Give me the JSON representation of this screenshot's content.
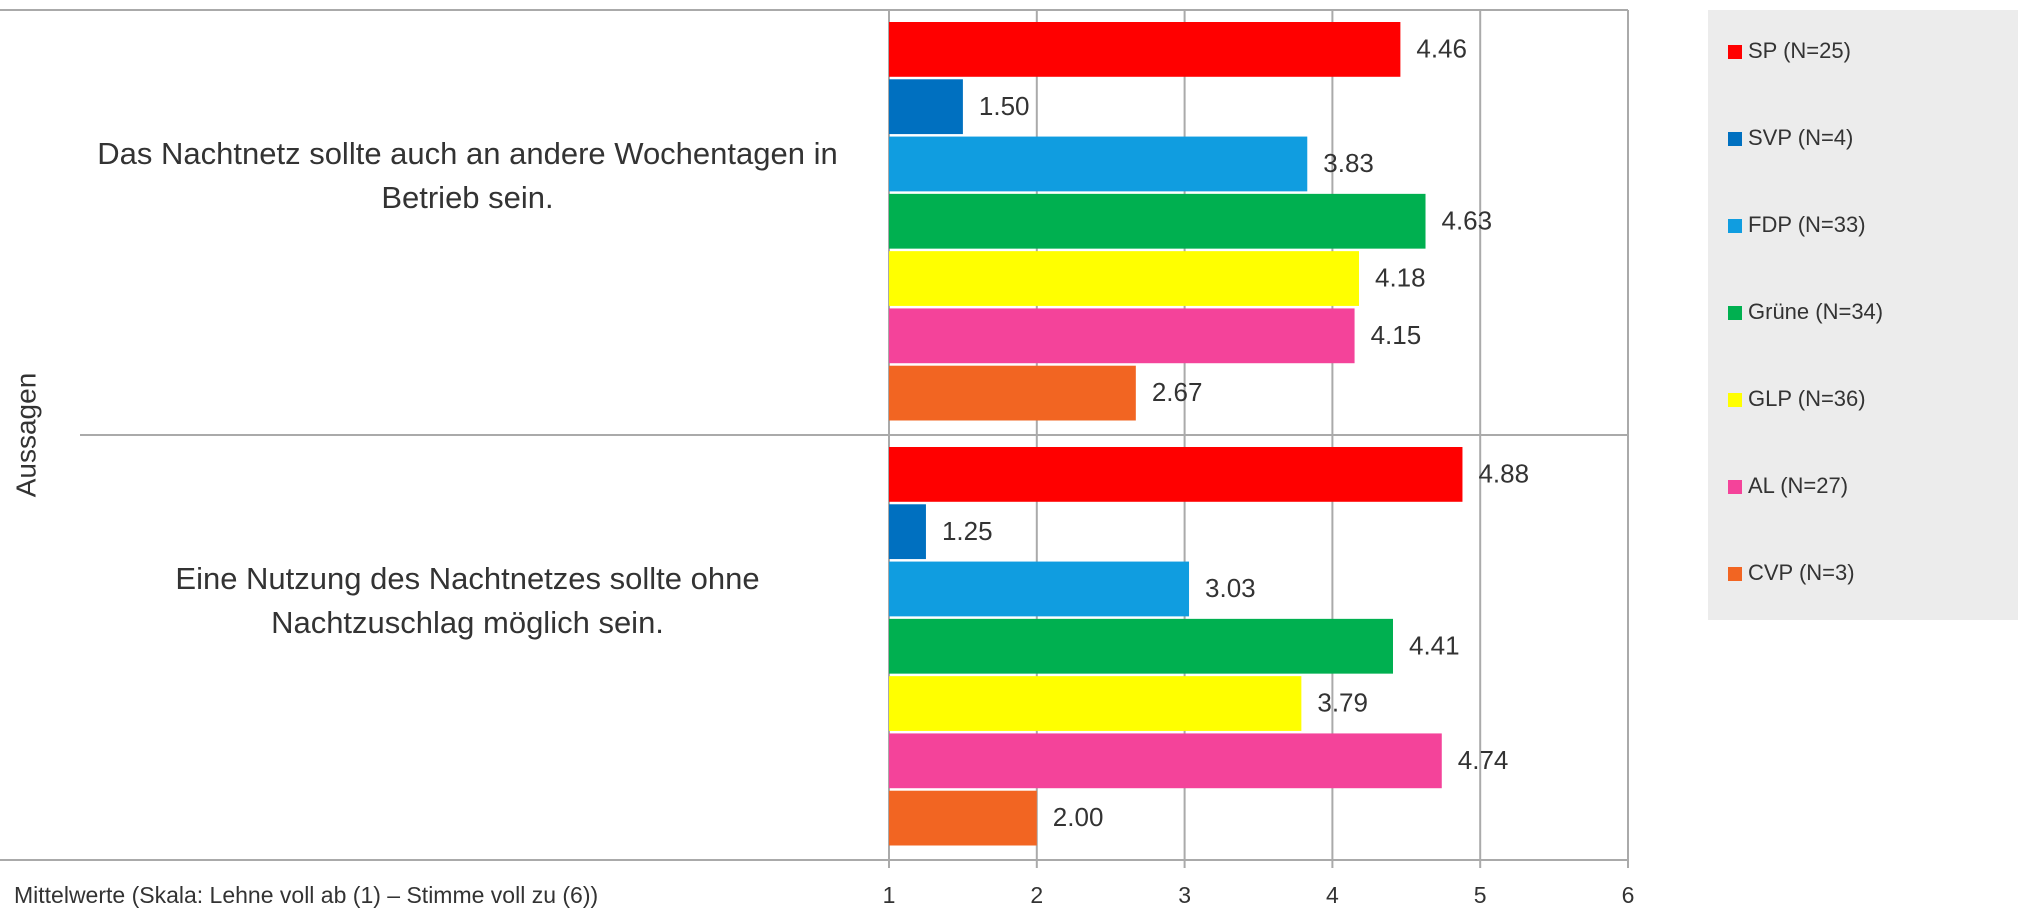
{
  "chart_data": {
    "type": "barh",
    "y_label": "Aussagen",
    "x_label": "Mittelwerte (Skala: Lehne voll ab (1) – Stimme voll zu (6))",
    "categories": [
      "Das Nachtnetz sollte auch an andere Wochentagen in Betrieb sein.",
      "Eine Nutzung des Nachtnetzes sollte ohne Nachtzuschlag möglich sein."
    ],
    "series": [
      {
        "name": "SP (N=25)",
        "color": "#ff0000",
        "values": [
          4.46,
          4.88
        ],
        "value_labels": [
          "4.46",
          "4.88"
        ]
      },
      {
        "name": "SVP (N=4)",
        "color": "#0070c0",
        "values": [
          1.5,
          1.25
        ],
        "value_labels": [
          "1.50",
          "1.25"
        ]
      },
      {
        "name": "FDP (N=33)",
        "color": "#109de0",
        "values": [
          3.83,
          3.03
        ],
        "value_labels": [
          "3.83",
          "3.03"
        ]
      },
      {
        "name": "Grüne (N=34)",
        "color": "#00b050",
        "values": [
          4.63,
          4.41
        ],
        "value_labels": [
          "4.63",
          "4.41"
        ]
      },
      {
        "name": "GLP (N=36)",
        "color": "#ffff00",
        "values": [
          4.18,
          3.79
        ],
        "value_labels": [
          "4.18",
          "3.79"
        ]
      },
      {
        "name": "AL (N=27)",
        "color": "#f4439a",
        "values": [
          4.15,
          4.74
        ],
        "value_labels": [
          "4.15",
          "4.74"
        ]
      },
      {
        "name": "CVP (N=3)",
        "color": "#f26522",
        "values": [
          2.67,
          2.0
        ],
        "value_labels": [
          "2.67",
          "2.00"
        ]
      }
    ],
    "xlim": [
      1,
      6
    ],
    "xticks": [
      1,
      2,
      3,
      4,
      5,
      6
    ],
    "grid": true,
    "legend": "right"
  }
}
